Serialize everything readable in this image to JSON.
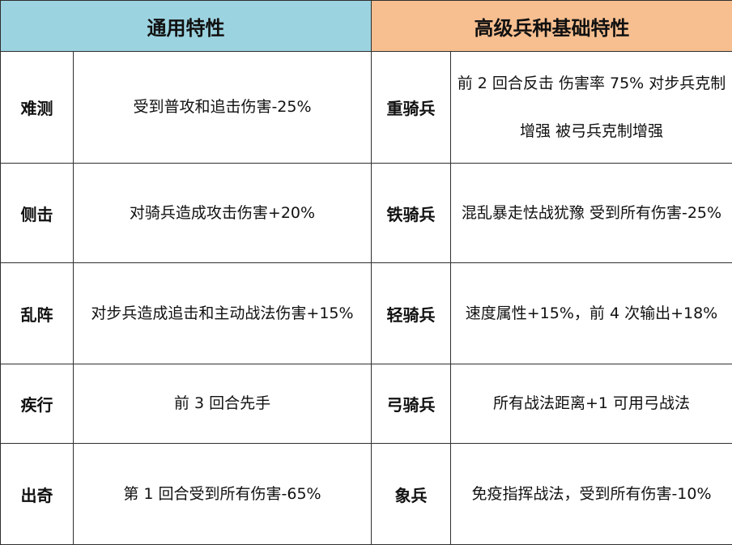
{
  "headers": {
    "general": "通用特性",
    "advanced": "高级兵种基础特性"
  },
  "rows": [
    {
      "trait": "难测",
      "trait_desc": "受到普攻和追击伤害-25%",
      "unit": "重骑兵",
      "unit_desc": "前 2 回合反击  伤害率 75%  对步兵克制增强  被弓兵克制增强"
    },
    {
      "trait": "侧击",
      "trait_desc": "对骑兵造成攻击伤害+20%",
      "unit": "铁骑兵",
      "unit_desc": "混乱暴走怯战犹豫  受到所有伤害-25%"
    },
    {
      "trait": "乱阵",
      "trait_desc": "对步兵造成追击和主动战法伤害+15%",
      "unit": "轻骑兵",
      "unit_desc": "速度属性+15%，前 4 次输出+18%"
    },
    {
      "trait": "疾行",
      "trait_desc": "前 3 回合先手",
      "unit": "弓骑兵",
      "unit_desc": "所有战法距离+1    可用弓战法"
    },
    {
      "trait": "出奇",
      "trait_desc": "第 1 回合受到所有伤害-65%",
      "unit": "象兵",
      "unit_desc": "免疫指挥战法，受到所有伤害-10%"
    }
  ]
}
